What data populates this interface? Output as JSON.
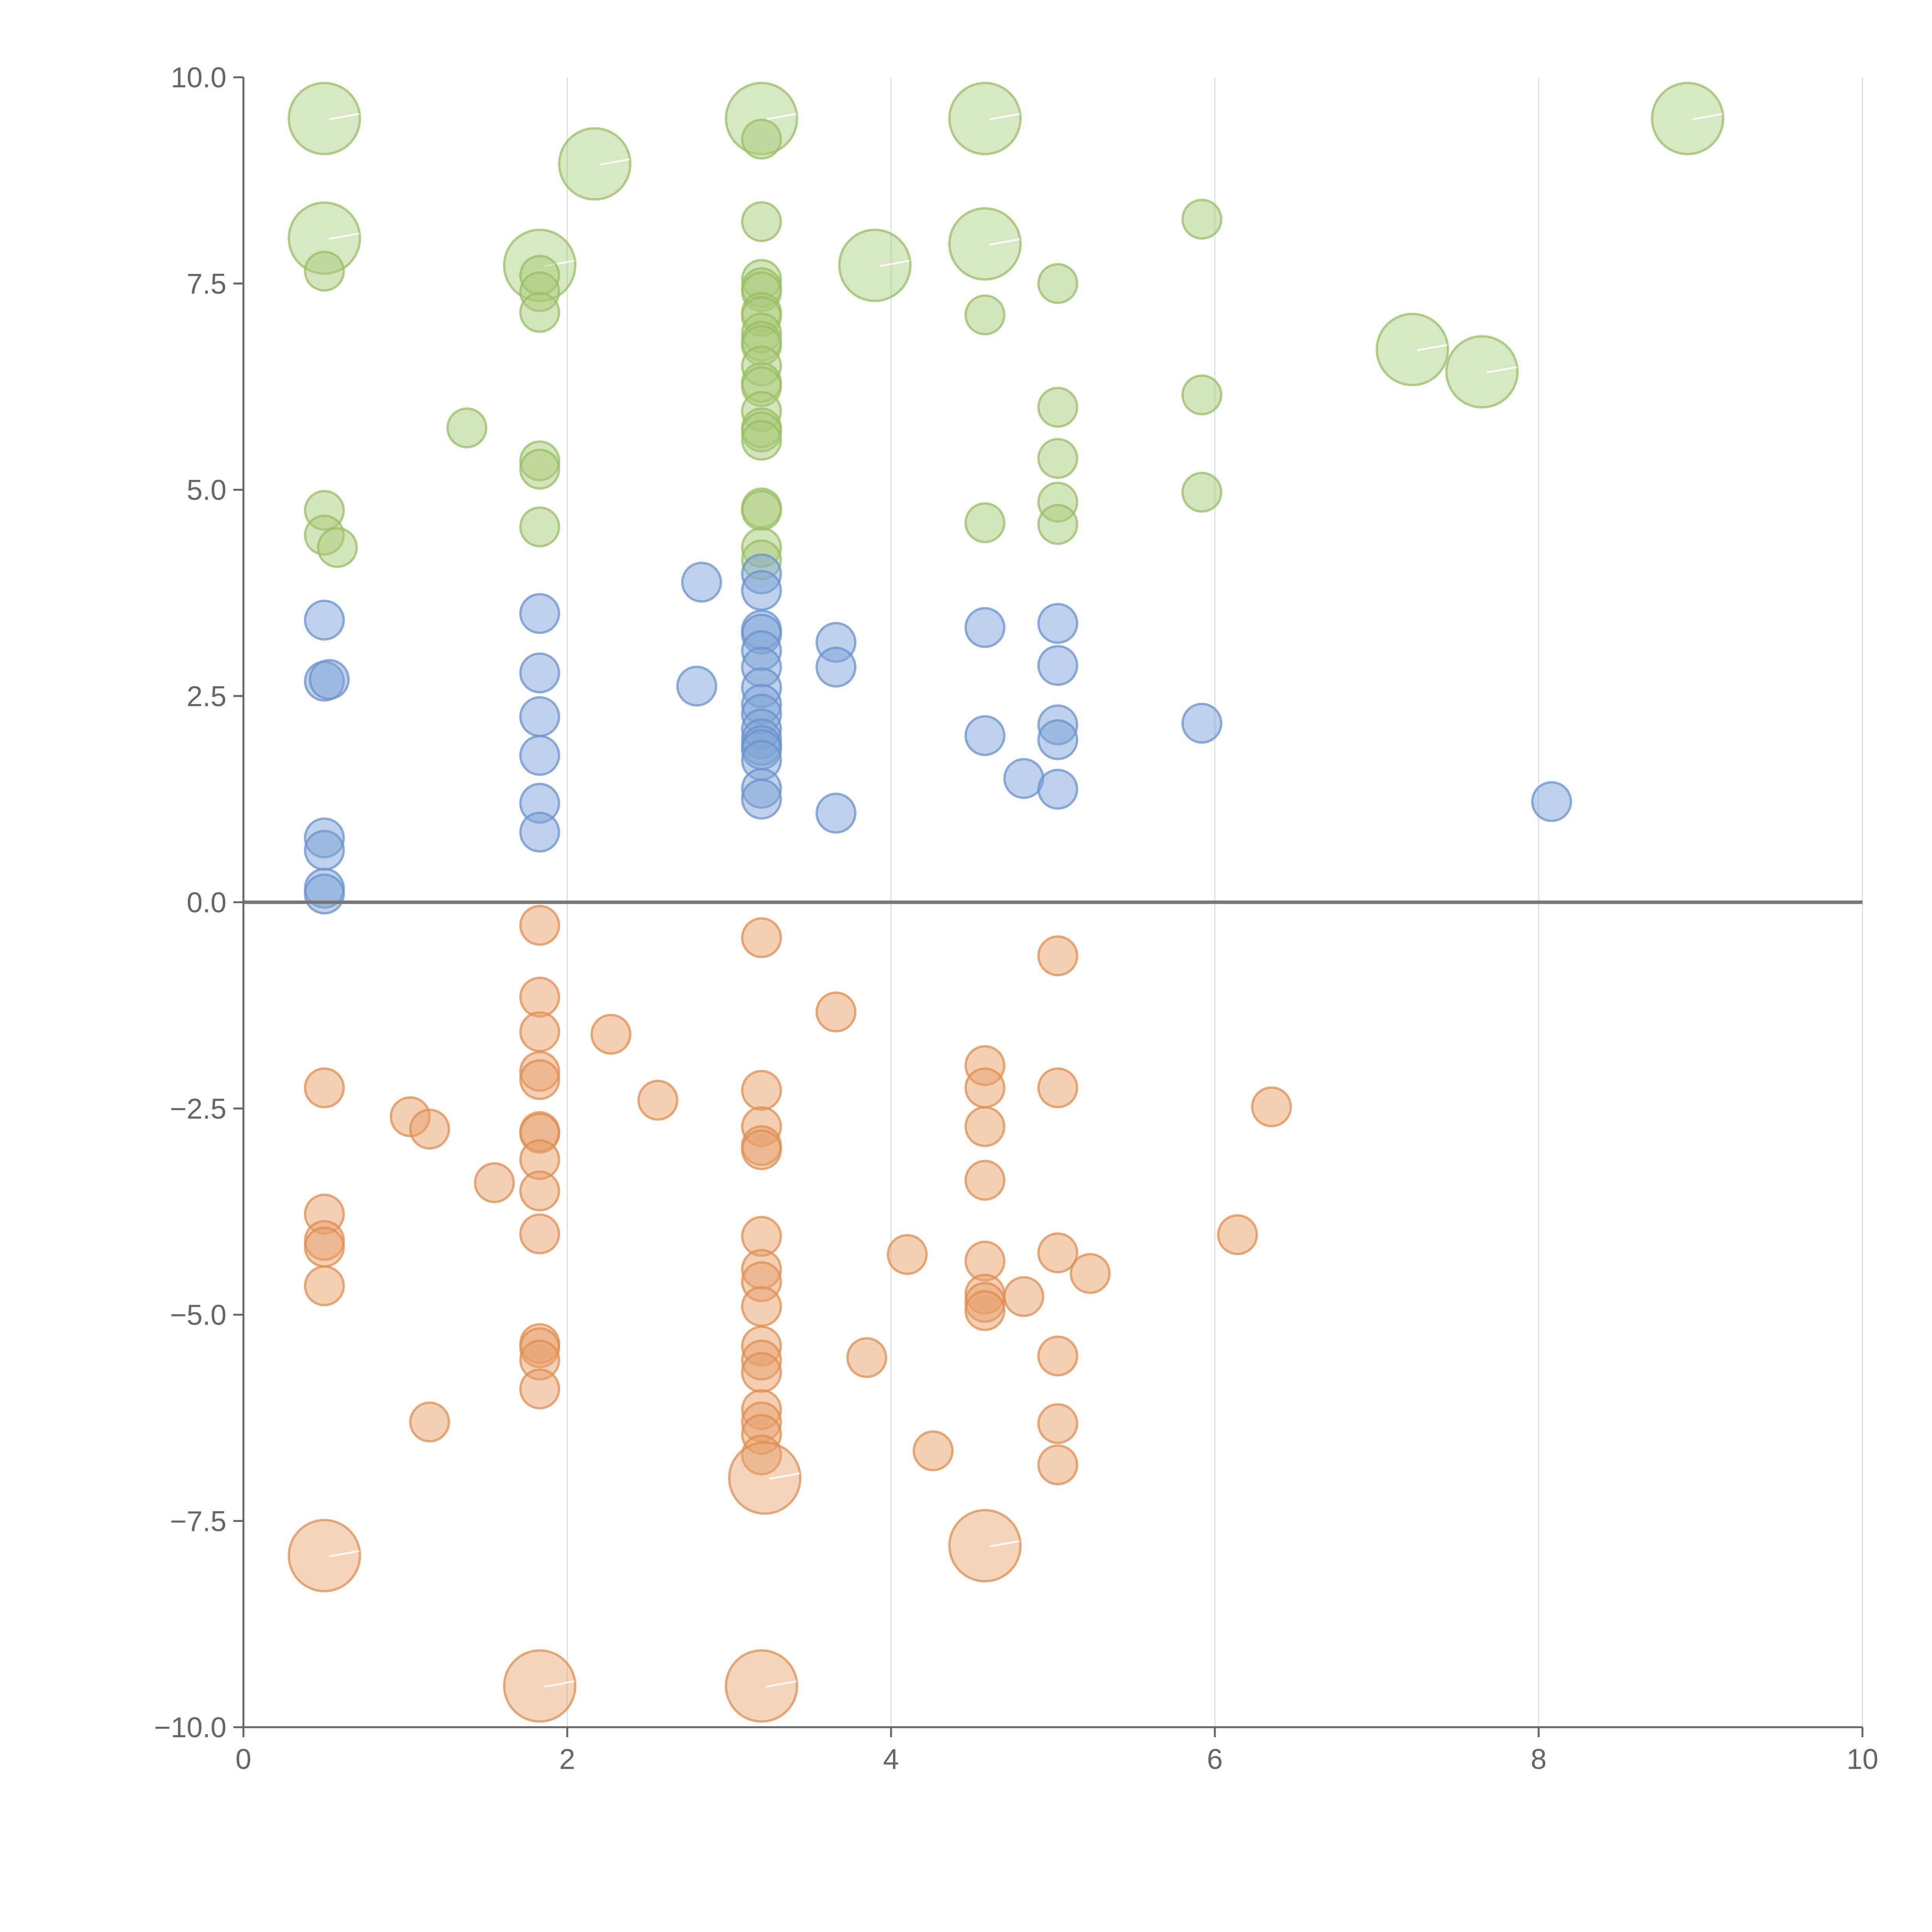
{
  "chart_data": {
    "type": "scatter",
    "title": "",
    "xlabel": "",
    "ylabel": "",
    "xlim": [
      0,
      10
    ],
    "ylim": [
      -10,
      10
    ],
    "grid": "vertical",
    "reference_line_y": 0,
    "x_ticks": [
      "0",
      "2",
      "4",
      "6",
      "8",
      "10"
    ],
    "x_tick_values": [
      0,
      2,
      4,
      6,
      8,
      10
    ],
    "y_ticks": [
      "−10.0",
      "−7.5",
      "−5.0",
      "−2.5",
      "0.0",
      "2.5",
      "5.0",
      "7.5",
      "10.0"
    ],
    "y_tick_values": [
      -10,
      -7.5,
      -5,
      -2.5,
      0,
      2.5,
      5,
      7.5,
      10
    ],
    "series": [
      {
        "name": "green",
        "color": "#a9c97a",
        "stroke": "#98bd63",
        "points": [
          [
            0.5,
            9.5,
            1
          ],
          [
            0.5,
            8.05,
            1
          ],
          [
            0.5,
            7.65,
            0
          ],
          [
            0.5,
            4.75,
            0
          ],
          [
            0.5,
            4.45,
            0
          ],
          [
            0.58,
            4.3,
            0
          ],
          [
            1.38,
            5.75,
            0
          ],
          [
            1.83,
            7.72,
            1
          ],
          [
            1.83,
            7.6,
            0
          ],
          [
            1.83,
            7.4,
            0
          ],
          [
            1.83,
            7.15,
            0
          ],
          [
            1.83,
            5.35,
            0
          ],
          [
            1.83,
            5.25,
            0
          ],
          [
            1.83,
            4.55,
            0
          ],
          [
            2.17,
            8.95,
            1
          ],
          [
            3.2,
            9.5,
            1
          ],
          [
            3.2,
            9.25,
            0
          ],
          [
            3.2,
            8.25,
            0
          ],
          [
            3.2,
            7.55,
            0
          ],
          [
            3.2,
            7.45,
            0
          ],
          [
            3.2,
            7.4,
            0
          ],
          [
            3.2,
            7.15,
            0
          ],
          [
            3.2,
            7.1,
            0
          ],
          [
            3.2,
            6.9,
            0
          ],
          [
            3.2,
            6.8,
            0
          ],
          [
            3.2,
            6.75,
            0
          ],
          [
            3.2,
            6.5,
            0
          ],
          [
            3.2,
            6.3,
            0
          ],
          [
            3.2,
            6.25,
            0
          ],
          [
            3.2,
            5.95,
            0
          ],
          [
            3.2,
            5.75,
            0
          ],
          [
            3.2,
            5.7,
            0
          ],
          [
            3.2,
            5.6,
            0
          ],
          [
            3.2,
            4.78,
            0
          ],
          [
            3.2,
            4.75,
            0
          ],
          [
            3.2,
            4.3,
            0
          ],
          [
            3.2,
            4.15,
            0
          ],
          [
            3.9,
            7.72,
            1
          ],
          [
            4.58,
            9.5,
            1
          ],
          [
            4.58,
            7.98,
            1
          ],
          [
            4.58,
            7.12,
            0
          ],
          [
            4.58,
            4.6,
            0
          ],
          [
            5.03,
            7.5,
            0
          ],
          [
            5.03,
            6.0,
            0
          ],
          [
            5.03,
            5.38,
            0
          ],
          [
            5.03,
            4.85,
            0
          ],
          [
            5.03,
            4.58,
            0
          ],
          [
            5.92,
            8.28,
            0
          ],
          [
            5.92,
            6.15,
            0
          ],
          [
            5.92,
            4.97,
            0
          ],
          [
            7.22,
            6.7,
            1
          ],
          [
            7.65,
            6.43,
            1
          ],
          [
            8.92,
            9.5,
            1
          ]
        ]
      },
      {
        "name": "blue",
        "color": "#7fa3d5",
        "stroke": "#6a92cc",
        "points": [
          [
            0.5,
            3.42,
            0
          ],
          [
            0.5,
            2.68,
            0
          ],
          [
            0.53,
            2.7,
            0
          ],
          [
            0.5,
            0.78,
            0
          ],
          [
            0.5,
            0.63,
            0
          ],
          [
            0.5,
            0.17,
            0
          ],
          [
            0.5,
            0.1,
            0
          ],
          [
            1.83,
            3.5,
            0
          ],
          [
            1.83,
            2.78,
            0
          ],
          [
            1.83,
            2.25,
            0
          ],
          [
            1.83,
            1.78,
            0
          ],
          [
            1.83,
            1.2,
            0
          ],
          [
            1.83,
            0.85,
            0
          ],
          [
            2.8,
            2.62,
            0
          ],
          [
            2.83,
            3.88,
            0
          ],
          [
            3.2,
            3.98,
            0
          ],
          [
            3.2,
            3.78,
            0
          ],
          [
            3.2,
            3.3,
            0
          ],
          [
            3.2,
            3.25,
            0
          ],
          [
            3.2,
            3.05,
            0
          ],
          [
            3.2,
            2.85,
            0
          ],
          [
            3.2,
            2.6,
            0
          ],
          [
            3.2,
            2.4,
            0
          ],
          [
            3.2,
            2.28,
            0
          ],
          [
            3.2,
            2.1,
            0
          ],
          [
            3.2,
            1.98,
            0
          ],
          [
            3.2,
            1.9,
            0
          ],
          [
            3.2,
            1.85,
            0
          ],
          [
            3.2,
            1.72,
            0
          ],
          [
            3.2,
            1.38,
            0
          ],
          [
            3.2,
            1.25,
            0
          ],
          [
            3.66,
            3.15,
            0
          ],
          [
            3.66,
            2.85,
            0
          ],
          [
            3.66,
            1.08,
            0
          ],
          [
            4.58,
            3.33,
            0
          ],
          [
            4.58,
            2.02,
            0
          ],
          [
            4.82,
            1.5,
            0
          ],
          [
            5.03,
            3.38,
            0
          ],
          [
            5.03,
            2.87,
            0
          ],
          [
            5.03,
            2.15,
            0
          ],
          [
            5.03,
            1.97,
            0
          ],
          [
            5.03,
            1.37,
            0
          ],
          [
            5.92,
            2.17,
            0
          ],
          [
            8.08,
            1.22,
            0
          ]
        ]
      },
      {
        "name": "orange",
        "color": "#e8a06a",
        "stroke": "#de8d50",
        "points": [
          [
            0.5,
            -2.25,
            0
          ],
          [
            0.5,
            -3.78,
            0
          ],
          [
            0.5,
            -4.1,
            0
          ],
          [
            0.5,
            -4.18,
            0
          ],
          [
            0.5,
            -4.65,
            0
          ],
          [
            0.5,
            -7.92,
            1
          ],
          [
            1.03,
            -2.6,
            0
          ],
          [
            1.15,
            -2.75,
            0
          ],
          [
            1.15,
            -6.3,
            0
          ],
          [
            1.55,
            -3.4,
            0
          ],
          [
            1.83,
            -0.28,
            0
          ],
          [
            1.83,
            -1.15,
            0
          ],
          [
            1.83,
            -1.57,
            0
          ],
          [
            1.83,
            -2.05,
            0
          ],
          [
            1.83,
            -2.15,
            0
          ],
          [
            1.83,
            -2.78,
            0
          ],
          [
            1.83,
            -2.8,
            0
          ],
          [
            1.83,
            -3.12,
            0
          ],
          [
            1.83,
            -3.5,
            0
          ],
          [
            1.83,
            -4.02,
            0
          ],
          [
            1.83,
            -5.35,
            0
          ],
          [
            1.83,
            -5.4,
            0
          ],
          [
            1.83,
            -5.55,
            0
          ],
          [
            1.83,
            -5.9,
            0
          ],
          [
            1.83,
            -9.5,
            1
          ],
          [
            2.27,
            -1.6,
            0
          ],
          [
            2.56,
            -2.4,
            0
          ],
          [
            3.2,
            -0.43,
            0
          ],
          [
            3.2,
            -2.28,
            0
          ],
          [
            3.2,
            -2.72,
            0
          ],
          [
            3.2,
            -2.95,
            0
          ],
          [
            3.2,
            -3.0,
            0
          ],
          [
            3.2,
            -4.05,
            0
          ],
          [
            3.2,
            -4.45,
            0
          ],
          [
            3.2,
            -4.6,
            0
          ],
          [
            3.2,
            -4.9,
            0
          ],
          [
            3.2,
            -5.38,
            0
          ],
          [
            3.2,
            -5.55,
            0
          ],
          [
            3.2,
            -5.7,
            0
          ],
          [
            3.2,
            -6.15,
            0
          ],
          [
            3.2,
            -6.3,
            0
          ],
          [
            3.2,
            -6.45,
            0
          ],
          [
            3.2,
            -6.7,
            0
          ],
          [
            3.22,
            -6.98,
            1
          ],
          [
            3.2,
            -9.5,
            1
          ],
          [
            3.66,
            -1.33,
            0
          ],
          [
            3.85,
            -5.52,
            0
          ],
          [
            4.1,
            -4.27,
            0
          ],
          [
            4.26,
            -6.65,
            0
          ],
          [
            4.58,
            -1.98,
            0
          ],
          [
            4.58,
            -2.25,
            0
          ],
          [
            4.58,
            -2.72,
            0
          ],
          [
            4.58,
            -3.37,
            0
          ],
          [
            4.58,
            -4.35,
            0
          ],
          [
            4.58,
            -4.75,
            0
          ],
          [
            4.58,
            -4.85,
            0
          ],
          [
            4.58,
            -4.95,
            0
          ],
          [
            4.58,
            -7.8,
            1
          ],
          [
            4.82,
            -4.78,
            0
          ],
          [
            5.03,
            -0.65,
            0
          ],
          [
            5.03,
            -2.25,
            0
          ],
          [
            5.03,
            -4.25,
            0
          ],
          [
            5.03,
            -5.5,
            0
          ],
          [
            5.03,
            -6.32,
            0
          ],
          [
            5.03,
            -6.82,
            0
          ],
          [
            5.23,
            -4.5,
            0
          ],
          [
            6.14,
            -4.03,
            0
          ],
          [
            6.35,
            -2.48,
            0
          ]
        ]
      }
    ]
  }
}
